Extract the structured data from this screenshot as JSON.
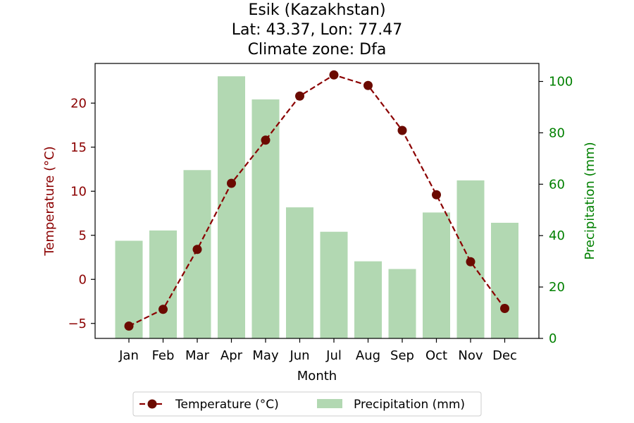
{
  "chart_data": {
    "type": "bar+line",
    "title_lines": [
      "Esik (Kazakhstan)",
      "Lat: 43.37, Lon: 77.47",
      "Climate zone: Dfa"
    ],
    "xlabel": "Month",
    "categories": [
      "Jan",
      "Feb",
      "Mar",
      "Apr",
      "May",
      "Jun",
      "Jul",
      "Aug",
      "Sep",
      "Oct",
      "Nov",
      "Dec"
    ],
    "temperature": {
      "name": "Temperature (°C)",
      "axis_label": "Temperature (°C)",
      "values": [
        -5.3,
        -3.4,
        3.4,
        10.9,
        15.8,
        20.8,
        23.2,
        22.0,
        16.9,
        9.6,
        2.0,
        -3.3
      ],
      "ylim": [
        -6.7,
        24.5
      ],
      "ticks": [
        -5,
        0,
        5,
        10,
        15,
        20
      ],
      "tick_labels": [
        "−5",
        "0",
        "5",
        "10",
        "15",
        "20"
      ],
      "color": "#8b0000",
      "marker_color": "#6b0a00"
    },
    "precipitation": {
      "name": "Precipitation (mm)",
      "axis_label": "Precipitation (mm)",
      "values": [
        38,
        42,
        65.5,
        102,
        93,
        51,
        41.5,
        30,
        27,
        49,
        61.5,
        45
      ],
      "ylim": [
        0,
        107
      ],
      "ticks": [
        0,
        20,
        40,
        60,
        80,
        100
      ],
      "tick_labels": [
        "0",
        "20",
        "40",
        "60",
        "80",
        "100"
      ],
      "color": "#b2d8b2",
      "axis_color": "#008000"
    },
    "legend": {
      "position": "bottom-center",
      "entries": [
        "Temperature (°C)",
        "Precipitation (mm)"
      ]
    },
    "grid": false
  }
}
